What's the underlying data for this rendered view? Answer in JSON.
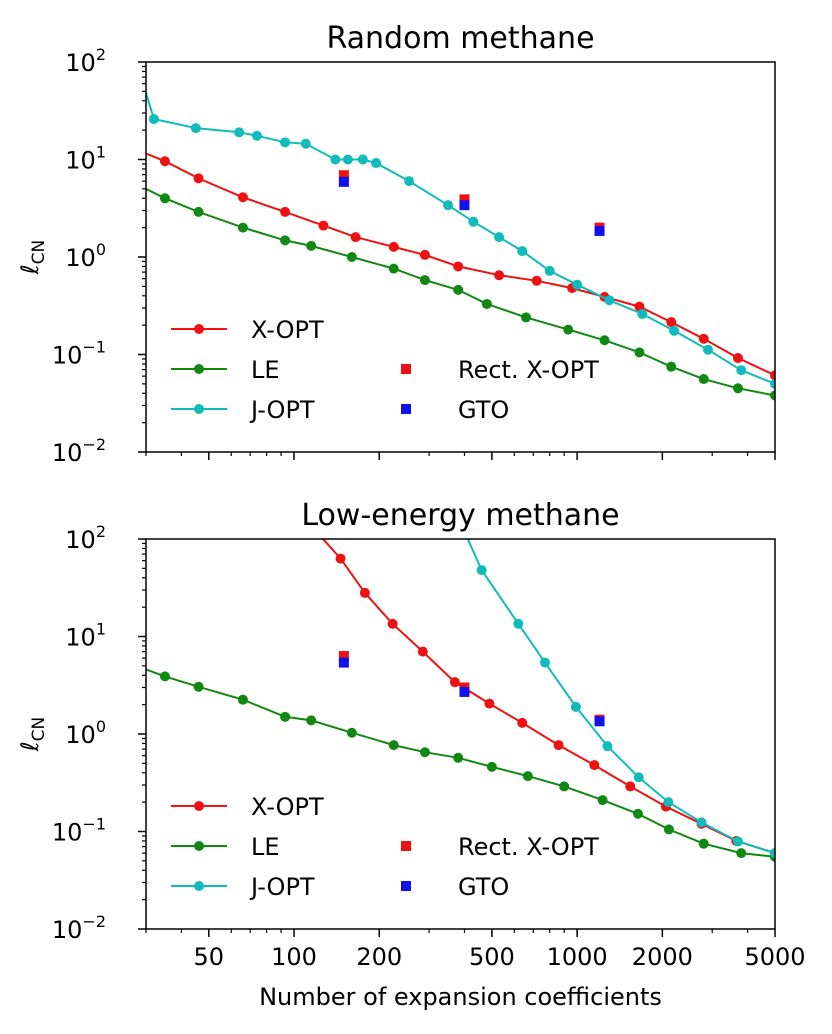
{
  "chart_data": [
    {
      "type": "line",
      "title": "Random methane",
      "xlabel": "",
      "ylabel_main": "ℓ",
      "ylabel_sub": "CN",
      "xscale": "log",
      "yscale": "log",
      "xlim": [
        30,
        5000
      ],
      "ylim": [
        0.01,
        100
      ],
      "y_ticks": [
        {
          "value": 0.01,
          "base": "10",
          "exp": "−2"
        },
        {
          "value": 0.1,
          "base": "10",
          "exp": "−1"
        },
        {
          "value": 1,
          "base": "10",
          "exp": "0"
        },
        {
          "value": 10,
          "base": "10",
          "exp": "1"
        },
        {
          "value": 100,
          "base": "10",
          "exp": "2"
        }
      ],
      "x_ticks": [
        {
          "value": 50,
          "label": ""
        },
        {
          "value": 100,
          "label": ""
        },
        {
          "value": 200,
          "label": ""
        },
        {
          "value": 500,
          "label": ""
        },
        {
          "value": 1000,
          "label": ""
        },
        {
          "value": 2000,
          "label": ""
        },
        {
          "value": 5000,
          "label": ""
        }
      ],
      "legend_position": "bottom-left",
      "series": [
        {
          "name": "X-OPT",
          "color": "#ee1111",
          "marker": "circle",
          "x": [
            30,
            35,
            46,
            66,
            93,
            127,
            165,
            225,
            290,
            380,
            530,
            720,
            960,
            1250,
            1660,
            2150,
            2800,
            3700,
            5000
          ],
          "y": [
            11.5,
            9.6,
            6.4,
            4.1,
            2.9,
            2.1,
            1.6,
            1.27,
            1.05,
            0.8,
            0.65,
            0.57,
            0.48,
            0.39,
            0.31,
            0.215,
            0.145,
            0.092,
            0.061
          ],
          "marker_from": 1
        },
        {
          "name": "LE",
          "color": "#118811",
          "marker": "circle",
          "x": [
            30,
            35,
            46,
            66,
            93,
            115,
            160,
            225,
            290,
            380,
            480,
            660,
            930,
            1250,
            1660,
            2150,
            2800,
            3700,
            5000
          ],
          "y": [
            5.0,
            4.0,
            2.9,
            2.0,
            1.48,
            1.3,
            1.0,
            0.76,
            0.58,
            0.46,
            0.33,
            0.24,
            0.18,
            0.14,
            0.105,
            0.075,
            0.056,
            0.045,
            0.038
          ],
          "marker_from": 1
        },
        {
          "name": "J-OPT",
          "color": "#11bbbb",
          "marker": "circle",
          "x": [
            30,
            32,
            45,
            64,
            74,
            93,
            110,
            140,
            155,
            175,
            195,
            255,
            350,
            430,
            530,
            640,
            800,
            1000,
            1300,
            1700,
            2200,
            2900,
            3800,
            5000
          ],
          "y": [
            48,
            26,
            21,
            19,
            17.5,
            15,
            14.5,
            10,
            10,
            10,
            9.2,
            6,
            3.4,
            2.3,
            1.6,
            1.15,
            0.72,
            0.52,
            0.36,
            0.26,
            0.175,
            0.112,
            0.069,
            0.05
          ],
          "marker_from": 1
        },
        {
          "name": "Rect. X-OPT",
          "color": "#ee1111",
          "marker": "square",
          "line": false,
          "x": [
            150,
            400,
            1200
          ],
          "y": [
            6.9,
            3.9,
            2.0
          ],
          "marker_from": 0
        },
        {
          "name": "GTO",
          "color": "#1111ee",
          "marker": "square",
          "line": false,
          "x": [
            150,
            400,
            1200
          ],
          "y": [
            5.9,
            3.4,
            1.85
          ],
          "marker_from": 0
        }
      ]
    },
    {
      "type": "line",
      "title": "Low-energy methane",
      "xlabel": "Number of expansion coefficients",
      "ylabel_main": "ℓ",
      "ylabel_sub": "CN",
      "xscale": "log",
      "yscale": "log",
      "xlim": [
        30,
        5000
      ],
      "ylim": [
        0.01,
        100
      ],
      "y_ticks": [
        {
          "value": 0.01,
          "base": "10",
          "exp": "−2"
        },
        {
          "value": 0.1,
          "base": "10",
          "exp": "−1"
        },
        {
          "value": 1,
          "base": "10",
          "exp": "0"
        },
        {
          "value": 10,
          "base": "10",
          "exp": "1"
        },
        {
          "value": 100,
          "base": "10",
          "exp": "2"
        }
      ],
      "x_ticks": [
        {
          "value": 50,
          "label": "50"
        },
        {
          "value": 100,
          "label": "100"
        },
        {
          "value": 200,
          "label": "200"
        },
        {
          "value": 500,
          "label": "500"
        },
        {
          "value": 1000,
          "label": "1000"
        },
        {
          "value": 2000,
          "label": "2000"
        },
        {
          "value": 5000,
          "label": "5000"
        }
      ],
      "legend_position": "bottom-left",
      "series": [
        {
          "name": "X-OPT",
          "color": "#ee1111",
          "marker": "circle",
          "x": [
            123,
            146,
            178,
            223,
            285,
            370,
            490,
            640,
            860,
            1150,
            1540,
            2060,
            2750,
            3650,
            5000
          ],
          "y": [
            110,
            63,
            28,
            13.5,
            7.0,
            3.4,
            2.05,
            1.3,
            0.77,
            0.48,
            0.29,
            0.18,
            0.12,
            0.08,
            0.06
          ],
          "marker_from": 1
        },
        {
          "name": "LE",
          "color": "#118811",
          "marker": "circle",
          "x": [
            30,
            35,
            46,
            66,
            93,
            115,
            160,
            225,
            290,
            380,
            500,
            670,
            900,
            1230,
            1640,
            2110,
            2800,
            3800,
            5000
          ],
          "y": [
            4.6,
            3.9,
            3.05,
            2.25,
            1.5,
            1.38,
            1.03,
            0.77,
            0.65,
            0.57,
            0.46,
            0.37,
            0.29,
            0.21,
            0.152,
            0.105,
            0.075,
            0.06,
            0.055
          ],
          "marker_from": 1
        },
        {
          "name": "J-OPT",
          "color": "#11bbbb",
          "marker": "circle",
          "x": [
            405,
            460,
            620,
            770,
            990,
            1280,
            1650,
            2100,
            2750,
            3700,
            5000
          ],
          "y": [
            110,
            48,
            13.5,
            5.4,
            1.9,
            0.75,
            0.36,
            0.2,
            0.124,
            0.079,
            0.06
          ],
          "marker_from": 1
        },
        {
          "name": "Rect. X-OPT",
          "color": "#ee1111",
          "marker": "square",
          "line": false,
          "x": [
            150,
            400,
            1200
          ],
          "y": [
            6.3,
            3.0,
            1.4
          ],
          "marker_from": 0
        },
        {
          "name": "GTO",
          "color": "#1111ee",
          "marker": "square",
          "line": false,
          "x": [
            150,
            400,
            1200
          ],
          "y": [
            5.4,
            2.7,
            1.35
          ],
          "marker_from": 0
        }
      ]
    }
  ]
}
